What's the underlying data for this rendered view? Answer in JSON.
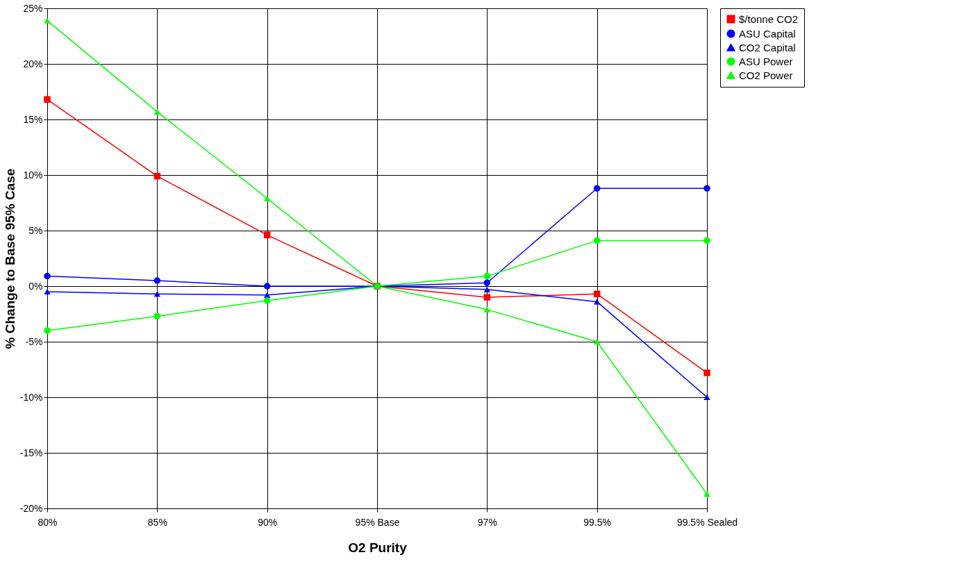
{
  "chart_data": {
    "type": "line",
    "xlabel": "O2 Purity",
    "ylabel": "% Change to Base 95% Case",
    "categories": [
      "80%",
      "85%",
      "90%",
      "95% Base",
      "97%",
      "99.5%",
      "99.5% Sealed"
    ],
    "series": [
      {
        "name": "$/tonne CO2",
        "color": "#ff0000",
        "marker": "square",
        "values": [
          16.8,
          9.9,
          4.6,
          0,
          -1.0,
          -0.7,
          -7.8
        ]
      },
      {
        "name": "ASU Capital",
        "color": "#0000ff",
        "marker": "circle",
        "values": [
          0.9,
          0.5,
          0,
          0,
          0.3,
          8.8,
          8.8
        ]
      },
      {
        "name": "CO2 Capital",
        "color": "#0000ff",
        "marker": "triangle",
        "values": [
          -0.5,
          -0.7,
          -0.8,
          0,
          -0.3,
          -1.4,
          -10.0
        ]
      },
      {
        "name": "ASU Power",
        "color": "#00ff00",
        "marker": "circle",
        "values": [
          -4.0,
          -2.7,
          -1.3,
          0,
          0.9,
          4.1,
          4.1
        ]
      },
      {
        "name": "CO2 Power",
        "color": "#00ff00",
        "marker": "triangle",
        "values": [
          23.9,
          15.7,
          7.9,
          0,
          -2.1,
          -5.0,
          -18.7
        ]
      }
    ],
    "ylim": [
      -20,
      25
    ],
    "yticks": [
      {
        "value": -20,
        "label": "-20%"
      },
      {
        "value": -15,
        "label": "-15%"
      },
      {
        "value": -10,
        "label": "-10%"
      },
      {
        "value": -5,
        "label": "-5%"
      },
      {
        "value": 0,
        "label": "0%"
      },
      {
        "value": 5,
        "label": "5%"
      },
      {
        "value": 10,
        "label": "10%"
      },
      {
        "value": 15,
        "label": "15%"
      },
      {
        "value": 20,
        "label": "20%"
      },
      {
        "value": 25,
        "label": "25%"
      }
    ],
    "grid": true,
    "legend": "right",
    "line_style": "solid"
  }
}
